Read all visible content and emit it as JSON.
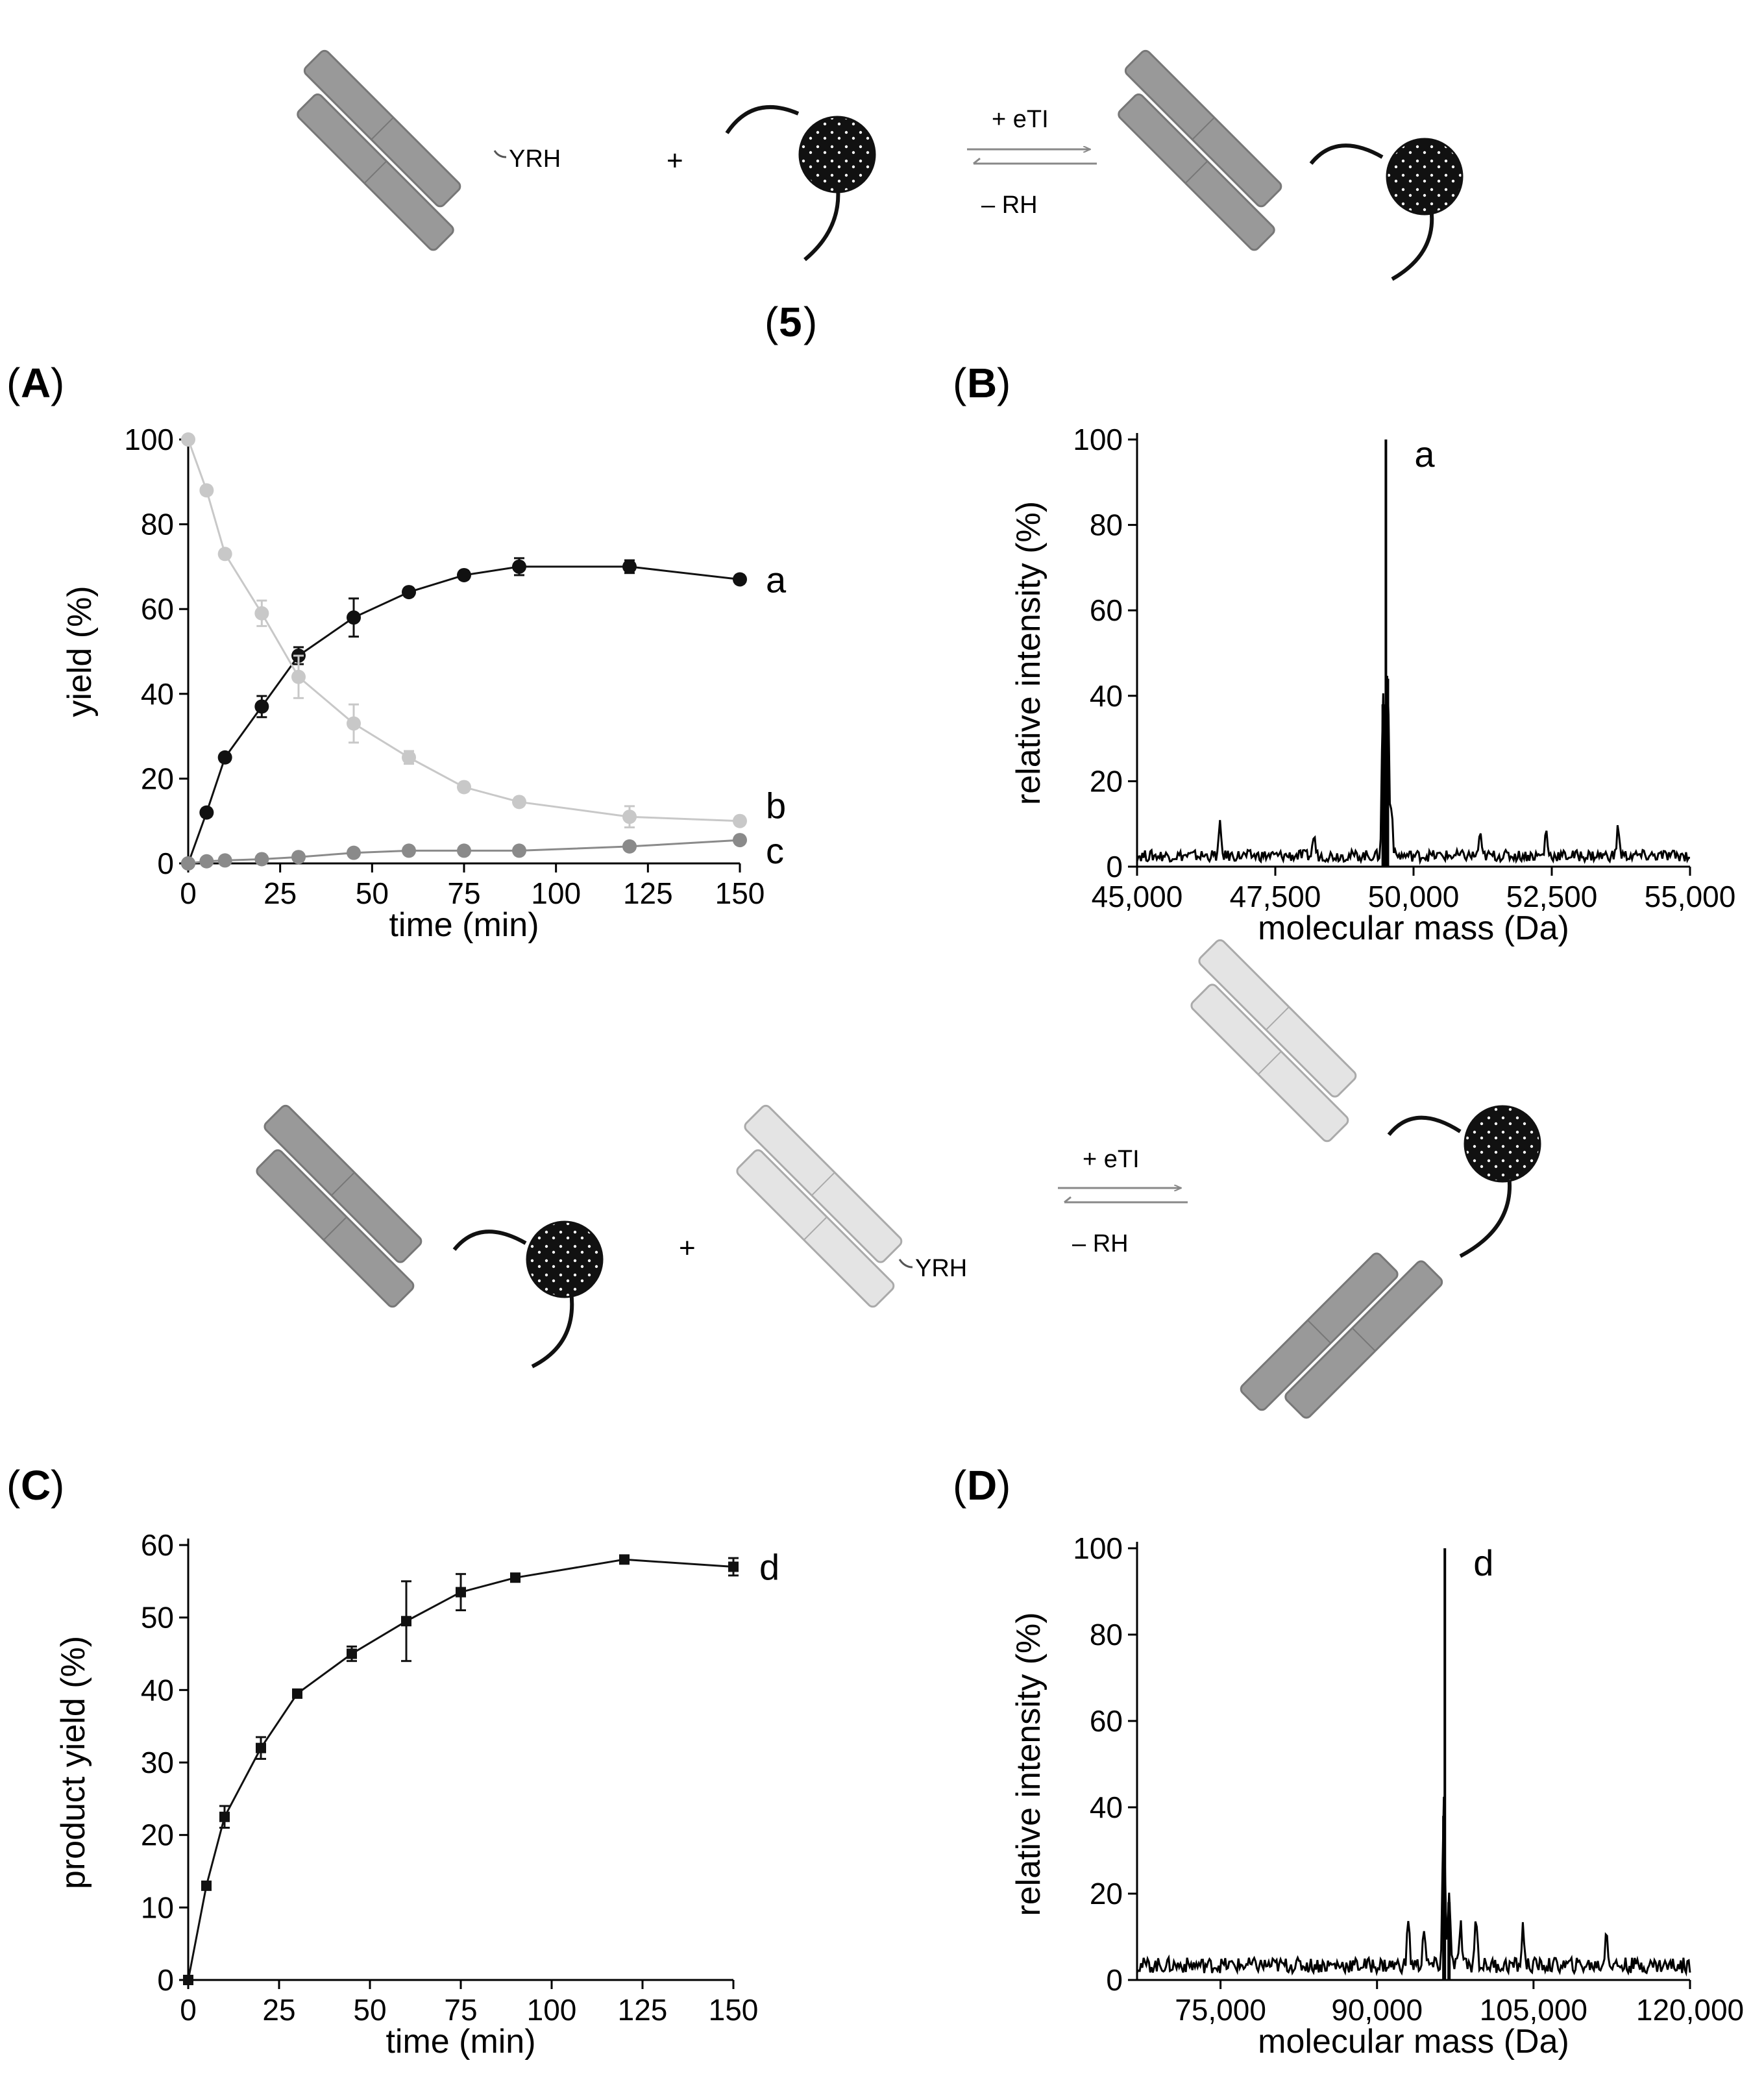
{
  "scheme_top": {
    "tag_text": "YRH",
    "plus": "+",
    "arrow_top_label": "+ eTI",
    "arrow_bottom_label": "– RH",
    "compound_label_open": "(",
    "compound_label_number": "5",
    "compound_label_close": ")"
  },
  "scheme_bottom": {
    "tag_text": "YRH",
    "plus": "+",
    "arrow_top_label": "+ eTI",
    "arrow_bottom_label": "– RH"
  },
  "colors": {
    "series_a": "#111111",
    "series_b": "#c8c8c8",
    "series_c": "#8a8a8a",
    "series_d": "#111111",
    "antibody_dark": "#999999",
    "antibody_light": "#e4e4e4",
    "linker_core": "#111111"
  },
  "chart_data": [
    {
      "panel": "(A)",
      "panel_open": "(",
      "panel_letter": "A",
      "panel_close": ")",
      "type": "line",
      "xlabel": "time (min)",
      "ylabel": "yield (%)",
      "xlim": [
        0,
        150
      ],
      "ylim": [
        0,
        100
      ],
      "xticks": [
        0,
        25,
        50,
        75,
        100,
        125,
        150
      ],
      "yticks": [
        0,
        20,
        40,
        60,
        80,
        100
      ],
      "grid": false,
      "series": [
        {
          "name": "a",
          "x": [
            0,
            5,
            10,
            20,
            30,
            45,
            60,
            75,
            90,
            120,
            150
          ],
          "y": [
            0,
            12,
            25,
            37,
            49,
            58,
            64,
            68,
            70,
            70,
            67
          ],
          "err": [
            0,
            1,
            1,
            2.5,
            2,
            4.5,
            1,
            1,
            2,
            1.5,
            1
          ]
        },
        {
          "name": "b",
          "x": [
            0,
            5,
            10,
            20,
            30,
            45,
            60,
            75,
            90,
            120,
            150
          ],
          "y": [
            100,
            88,
            73,
            59,
            44,
            33,
            25,
            18,
            14.5,
            11,
            10
          ],
          "err": [
            0,
            1,
            1,
            3,
            5,
            4.5,
            1.5,
            1,
            1,
            2.5,
            1
          ]
        },
        {
          "name": "c",
          "x": [
            0,
            5,
            10,
            20,
            30,
            45,
            60,
            75,
            90,
            120,
            150
          ],
          "y": [
            0,
            0.5,
            0.7,
            1,
            1.5,
            2.5,
            3,
            3,
            3,
            4,
            5.5
          ],
          "err": [
            0,
            0.3,
            0.3,
            0.3,
            0.3,
            0.3,
            0.3,
            0.3,
            0.3,
            0.3,
            0.3
          ]
        }
      ]
    },
    {
      "panel": "(B)",
      "panel_open": "(",
      "panel_letter": "B",
      "panel_close": ")",
      "type": "line",
      "xlabel": "molecular mass (Da)",
      "ylabel": "relative intensity (%)",
      "xlim": [
        45000,
        55000
      ],
      "ylim": [
        0,
        100
      ],
      "xticks": [
        45000,
        47500,
        50000,
        52500,
        55000
      ],
      "xtick_labels": [
        "45,000",
        "47,500",
        "50,000",
        "52,500",
        "55,000"
      ],
      "yticks": [
        0,
        20,
        40,
        60,
        80,
        100
      ],
      "grid": false,
      "peak_label": "a",
      "main_peak": {
        "mass": 49500,
        "intensity": 100
      },
      "peaks": [
        {
          "mass": 49450,
          "intensity": 38
        },
        {
          "mass": 49530,
          "intensity": 44
        },
        {
          "mass": 49600,
          "intensity": 12
        },
        {
          "mass": 46500,
          "intensity": 7
        },
        {
          "mass": 48200,
          "intensity": 5
        },
        {
          "mass": 51200,
          "intensity": 5
        },
        {
          "mass": 52400,
          "intensity": 6
        },
        {
          "mass": 53700,
          "intensity": 7
        }
      ],
      "baseline": 3
    },
    {
      "panel": "(C)",
      "panel_open": "(",
      "panel_letter": "C",
      "panel_close": ")",
      "type": "line",
      "xlabel": "time (min)",
      "ylabel": "product yield (%)",
      "xlim": [
        0,
        150
      ],
      "ylim": [
        0,
        60
      ],
      "xticks": [
        0,
        25,
        50,
        75,
        100,
        125,
        150
      ],
      "yticks": [
        0,
        10,
        20,
        30,
        40,
        50,
        60
      ],
      "grid": false,
      "series": [
        {
          "name": "d",
          "x": [
            0,
            5,
            10,
            20,
            30,
            45,
            60,
            75,
            90,
            120,
            150
          ],
          "y": [
            0,
            13,
            22.5,
            32,
            39.5,
            45,
            49.5,
            53.5,
            55.5,
            58,
            57
          ],
          "err": [
            0,
            0.5,
            1.5,
            1.5,
            0.5,
            1,
            5.5,
            2.5,
            0.5,
            0.5,
            1.2
          ]
        }
      ]
    },
    {
      "panel": "(D)",
      "panel_open": "(",
      "panel_letter": "D",
      "panel_close": ")",
      "type": "line",
      "xlabel": "molecular mass (Da)",
      "ylabel": "relative intensity (%)",
      "xlim": [
        67000,
        120000
      ],
      "ylim": [
        0,
        100
      ],
      "xticks": [
        75000,
        90000,
        105000,
        120000
      ],
      "xtick_labels": [
        "75,000",
        "90,000",
        "105,000",
        "120,000"
      ],
      "yticks": [
        0,
        20,
        40,
        60,
        80,
        100
      ],
      "grid": false,
      "peak_label": "d",
      "main_peak": {
        "mass": 96500,
        "intensity": 100
      },
      "peaks": [
        {
          "mass": 96400,
          "intensity": 38
        },
        {
          "mass": 96900,
          "intensity": 18
        },
        {
          "mass": 93000,
          "intensity": 11
        },
        {
          "mass": 94500,
          "intensity": 9
        },
        {
          "mass": 99500,
          "intensity": 12
        },
        {
          "mass": 98000,
          "intensity": 10
        },
        {
          "mass": 104000,
          "intensity": 9
        },
        {
          "mass": 112000,
          "intensity": 9
        }
      ],
      "baseline": 4
    }
  ]
}
